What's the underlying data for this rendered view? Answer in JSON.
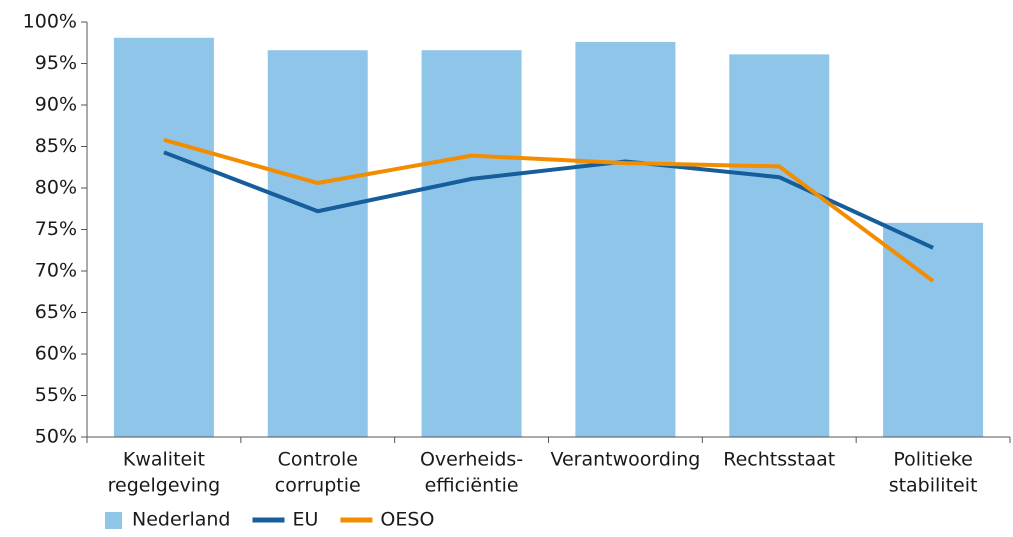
{
  "chart_data": {
    "type": "bar",
    "categories": [
      [
        "Kwaliteit",
        "regelgeving"
      ],
      [
        "Controle",
        "corruptie"
      ],
      [
        "Overheids-",
        "efficiëntie"
      ],
      [
        "Verantwoording"
      ],
      [
        "Rechtsstaat"
      ],
      [
        "Politieke",
        "stabiliteit"
      ]
    ],
    "series": [
      {
        "name": "Nederland",
        "type": "bar",
        "color": "#8fc5e8",
        "values": [
          98.1,
          96.6,
          96.6,
          97.6,
          96.1,
          75.8
        ]
      },
      {
        "name": "EU",
        "type": "line",
        "color": "#165d9c",
        "values": [
          84.3,
          77.2,
          81.1,
          83.2,
          81.3,
          72.8
        ]
      },
      {
        "name": "OESO",
        "type": "line",
        "color": "#f28c00",
        "values": [
          85.8,
          80.6,
          83.9,
          83.0,
          82.6,
          68.8
        ]
      }
    ],
    "ylim": [
      50,
      100
    ],
    "yticks": [
      {
        "value": 50,
        "label": "50%"
      },
      {
        "value": 55,
        "label": "55%"
      },
      {
        "value": 60,
        "label": "60%"
      },
      {
        "value": 65,
        "label": "65%"
      },
      {
        "value": 70,
        "label": "70%"
      },
      {
        "value": 75,
        "label": "75%"
      },
      {
        "value": 80,
        "label": "80%"
      },
      {
        "value": 85,
        "label": "85%"
      },
      {
        "value": 90,
        "label": "90%"
      },
      {
        "value": 95,
        "label": "95%"
      },
      {
        "value": 100,
        "label": "100%"
      }
    ],
    "grid": false,
    "legend": "bottom-left"
  }
}
